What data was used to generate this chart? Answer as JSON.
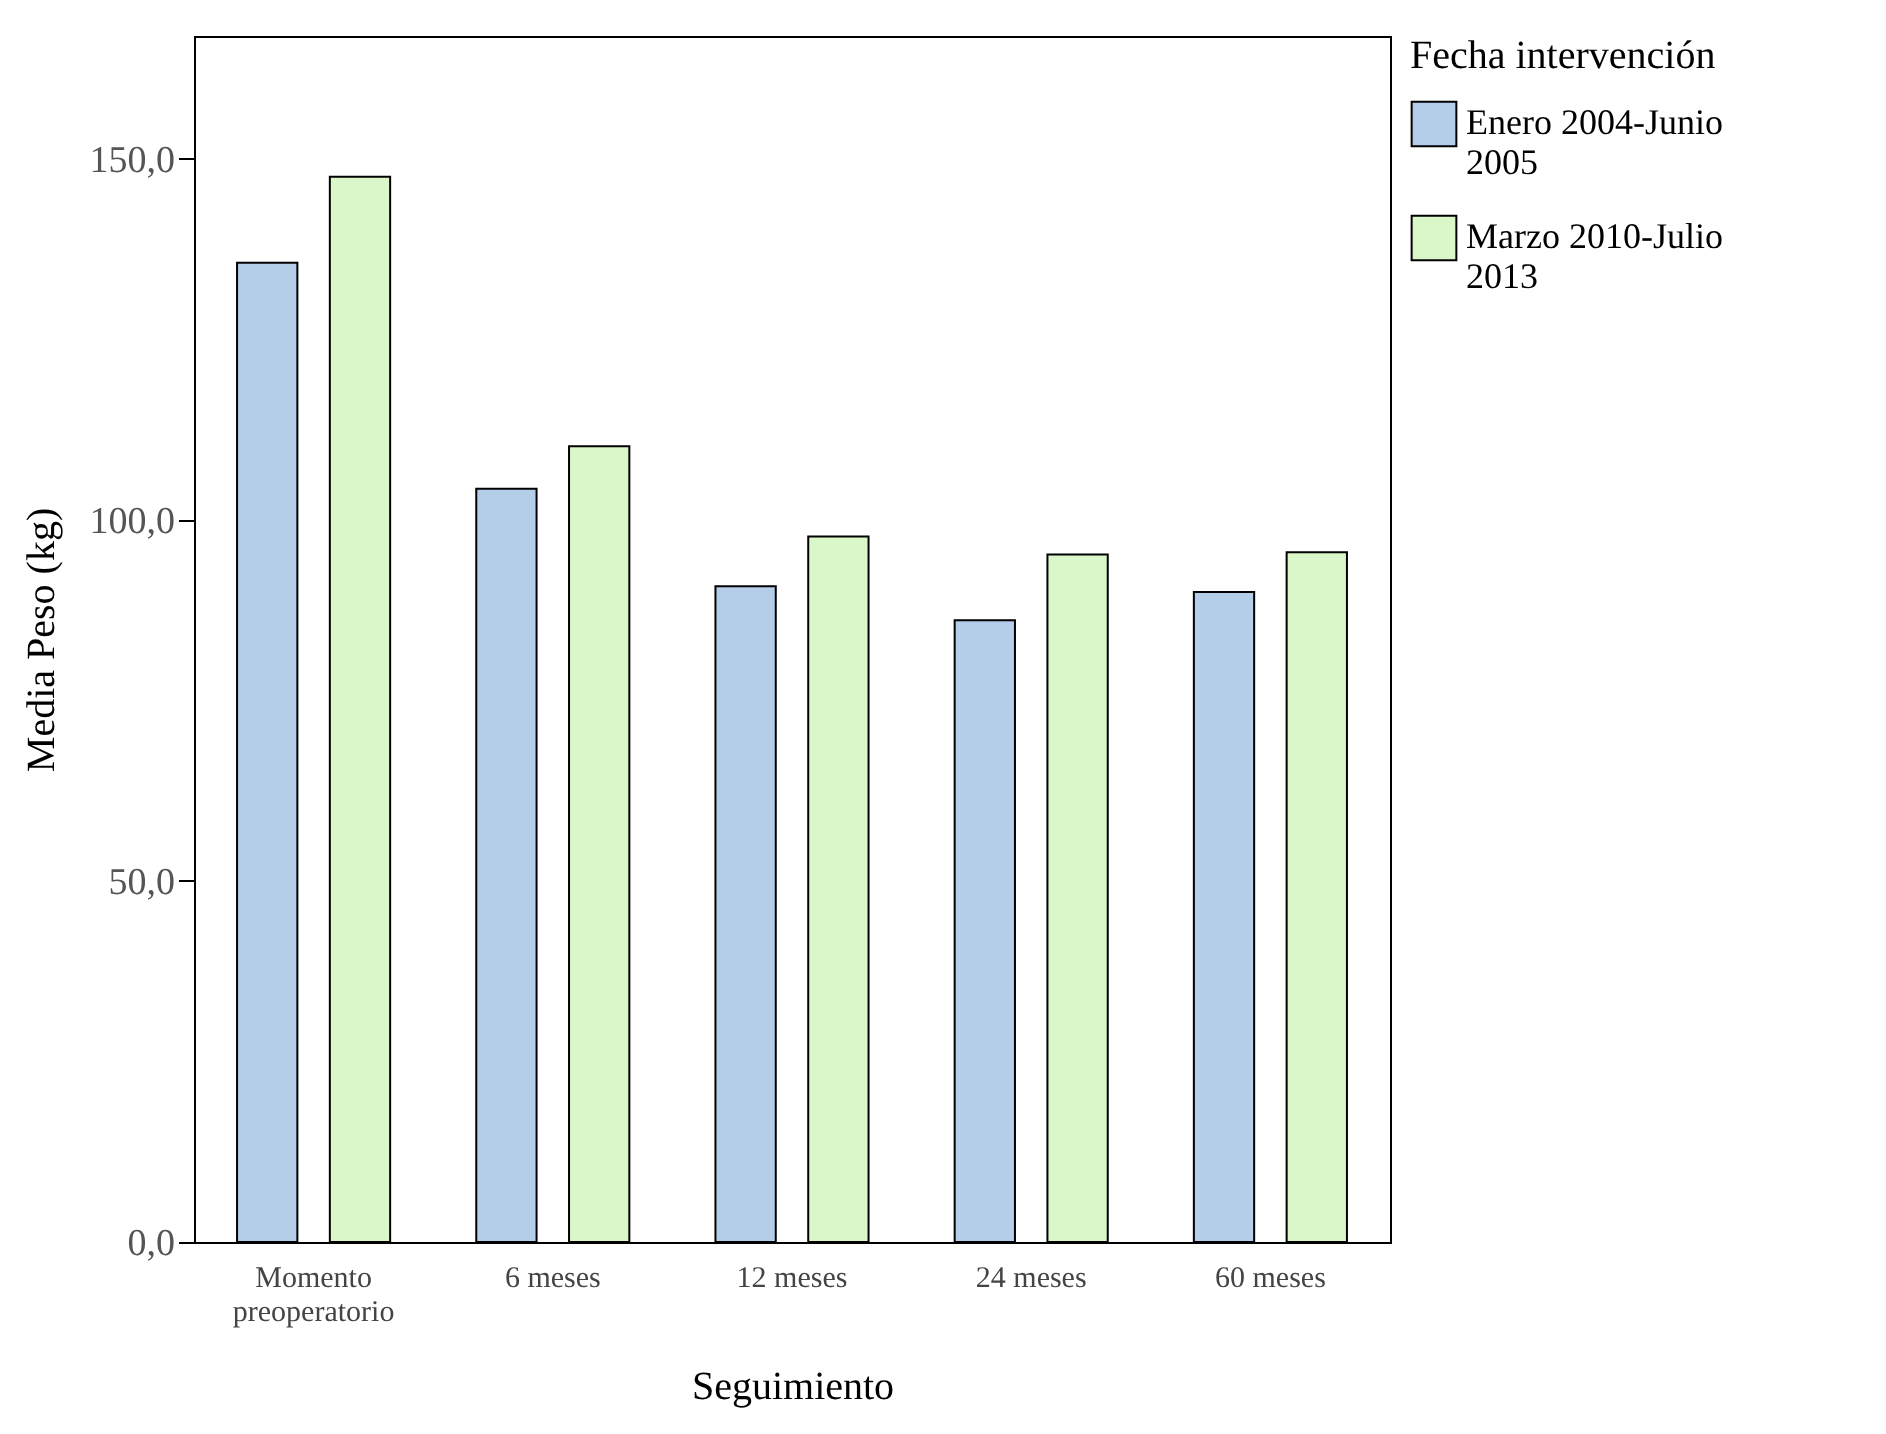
{
  "chart_data": {
    "type": "bar",
    "xlabel": "Seguimiento",
    "ylabel": "Media Peso (kg)",
    "legend_title": "Fecha intervención",
    "legend": "top right",
    "categories": [
      "Momento preoperatorio",
      "6 meses",
      "12 meses",
      "24 meses",
      "60 meses"
    ],
    "series": [
      {
        "name": "Enero 2004-Junio 2005",
        "color": "#b4cde8",
        "values": [
          135.6,
          104.3,
          90.8,
          86.1,
          90.0
        ]
      },
      {
        "name": "Marzo 2010-Julio 2013",
        "color": "#d9f7c8",
        "values": [
          147.5,
          110.2,
          97.7,
          95.2,
          95.5
        ]
      }
    ],
    "ylim": [
      0,
      167
    ],
    "yticks": [
      {
        "value": 0,
        "label": "0,0"
      },
      {
        "value": 50,
        "label": "50,0"
      },
      {
        "value": 100,
        "label": "100,0"
      },
      {
        "value": 150,
        "label": "150,0"
      }
    ],
    "grid": false
  }
}
